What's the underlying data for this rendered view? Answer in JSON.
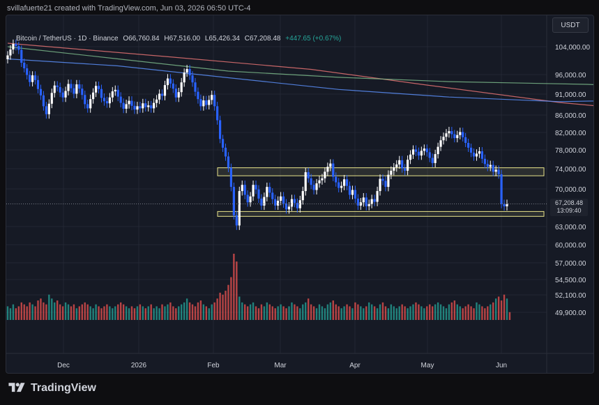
{
  "header": {
    "credit": "svillafuerte21 created with TradingView.com, Jun 03, 2026 06:50 UTC-4"
  },
  "legend": {
    "symbol": "Bitcoin / TetherUS · 1D · Binance",
    "open": "O66,760.84",
    "high": "H67,516.00",
    "low": "L65,426.34",
    "close": "C67,208.48",
    "change": "+447.65 (+0.67%)"
  },
  "currency_button": "USDT",
  "price_tag": {
    "price": "67,208.48",
    "countdown": "13:09:40"
  },
  "brand": {
    "name": "TradingView",
    "logo_icon": "tradingview-logo-icon"
  },
  "colors": {
    "up": "#ffffff",
    "down": "#2962ff",
    "vol_up": "#26a69a",
    "vol_down": "#ef5350",
    "ma_fast": "#5b8ff9",
    "ma_mid": "#7bb88a",
    "ma_slow": "#e57373",
    "zone": "#e8e38a"
  },
  "chart_data": {
    "type": "candlestick",
    "x_axis_labels": [
      "Dec",
      "2026",
      "Feb",
      "Mar",
      "Apr",
      "May",
      "Jun"
    ],
    "x_axis_months": [
      "2025-12-01",
      "2026-01-01",
      "2026-02-01",
      "2026-03-01",
      "2026-04-01",
      "2026-05-01",
      "2026-06-01"
    ],
    "y_axis_ticks": [
      104000,
      96000,
      91000,
      86000,
      82000,
      78000,
      74000,
      70000,
      63000,
      60000,
      57000,
      54500,
      52100,
      49900
    ],
    "y_axis_labels": [
      "104,000.00",
      "96,000.00",
      "91,000.00",
      "86,000.00",
      "82,000.00",
      "78,000.00",
      "74,000.00",
      "70,000.00",
      "63,000.00",
      "60,000.00",
      "57,000.00",
      "54,500.00",
      "52,100.00",
      "49,900.00"
    ],
    "x_range": [
      "2025-11-06",
      "2026-06-03"
    ],
    "ohlc_close": [
      101500,
      103200,
      104800,
      104200,
      103100,
      99400,
      97800,
      95900,
      94100,
      95800,
      94600,
      92300,
      90700,
      88100,
      86200,
      88700,
      91300,
      93200,
      92800,
      91400,
      90200,
      91800,
      93600,
      92500,
      91100,
      93500,
      92400,
      90800,
      88600,
      87600,
      89800,
      91400,
      93100,
      92300,
      90100,
      89300,
      88800,
      90200,
      91700,
      92100,
      90400,
      88900,
      87500,
      88600,
      89400,
      88200,
      87300,
      88100,
      87600,
      88800,
      87900,
      88300,
      87600,
      88900,
      89700,
      91100,
      90600,
      93300,
      95000,
      93700,
      92400,
      90200,
      91500,
      94000,
      96600,
      97600,
      95800,
      94000,
      91600,
      89800,
      88100,
      89500,
      88400,
      89600,
      90800,
      88100,
      84800,
      80500,
      78500,
      76600,
      74200,
      70400,
      65100,
      63200,
      69600,
      70800,
      68900,
      67500,
      68600,
      70800,
      69900,
      68200,
      66900,
      68500,
      70400,
      69300,
      68100,
      66900,
      67800,
      68600,
      67300,
      66200,
      66700,
      68100,
      67400,
      66400,
      67900,
      69600,
      73300,
      72100,
      70800,
      69800,
      71100,
      71700,
      72100,
      73400,
      74400,
      75100,
      72400,
      71300,
      70200,
      70600,
      71900,
      70600,
      68900,
      69800,
      68200,
      66900,
      67500,
      68400,
      66800,
      67200,
      68100,
      67600,
      69600,
      72000,
      71600,
      70400,
      72800,
      73600,
      74300,
      74900,
      75800,
      74100,
      73600,
      75900,
      77000,
      78100,
      77600,
      76800,
      77800,
      78300,
      77500,
      76300,
      75200,
      77100,
      78700,
      80200,
      81000,
      81800,
      82300,
      81600,
      80700,
      81400,
      82100,
      80900,
      79600,
      78500,
      77400,
      76600,
      77200,
      77700,
      76100,
      75000,
      74400,
      74800,
      73400,
      73800,
      72900,
      67200,
      66760,
      67208
    ],
    "ohlc_open": [
      100400,
      101500,
      103200,
      104800,
      104200,
      103100,
      99400,
      97800,
      95900,
      94100,
      95800,
      94600,
      92300,
      90700,
      88100,
      86200,
      88700,
      91300,
      93200,
      92800,
      91400,
      90200,
      91800,
      93600,
      92500,
      91100,
      93500,
      92400,
      90800,
      88600,
      87600,
      89800,
      91400,
      93100,
      92300,
      90100,
      89300,
      88800,
      90200,
      91700,
      92100,
      90400,
      88900,
      87500,
      88600,
      89400,
      88200,
      87300,
      88100,
      87600,
      88800,
      87900,
      88300,
      87600,
      88900,
      89700,
      91100,
      90600,
      93300,
      95000,
      93700,
      92400,
      90200,
      91500,
      94000,
      96600,
      97600,
      95800,
      94000,
      91600,
      89800,
      88100,
      89500,
      88400,
      89600,
      90800,
      88100,
      84800,
      80500,
      78500,
      76600,
      74200,
      70400,
      65100,
      63200,
      69600,
      70800,
      68900,
      67500,
      68600,
      70800,
      69900,
      68200,
      66900,
      68500,
      70400,
      69300,
      68100,
      66900,
      67800,
      68600,
      67300,
      66200,
      66700,
      68100,
      67400,
      66400,
      67900,
      69600,
      73300,
      72100,
      70800,
      69800,
      71100,
      71700,
      72100,
      73400,
      74400,
      75100,
      72400,
      71300,
      70200,
      70600,
      71900,
      70600,
      68900,
      69800,
      68200,
      66900,
      67500,
      68400,
      66800,
      67200,
      68100,
      67600,
      69600,
      72000,
      71600,
      70400,
      72800,
      73600,
      74300,
      74900,
      75800,
      74100,
      73600,
      75900,
      77000,
      78100,
      77600,
      76800,
      77800,
      78300,
      77500,
      76300,
      75200,
      77100,
      78700,
      80200,
      81000,
      81800,
      82300,
      81600,
      80700,
      81400,
      82100,
      80900,
      79600,
      78500,
      77400,
      76600,
      77200,
      77700,
      76100,
      75000,
      74400,
      74800,
      73400,
      73800,
      72900,
      67200,
      66760
    ],
    "ohlc_wick_pct": 0.012,
    "volume": [
      7,
      6,
      8,
      6,
      7,
      9,
      8,
      7,
      9,
      8,
      7,
      10,
      11,
      9,
      8,
      13,
      11,
      9,
      10,
      8,
      7,
      9,
      8,
      7,
      8,
      6,
      7,
      8,
      9,
      8,
      7,
      6,
      8,
      7,
      6,
      7,
      8,
      7,
      6,
      7,
      8,
      9,
      8,
      7,
      6,
      7,
      6,
      7,
      8,
      7,
      6,
      7,
      8,
      6,
      7,
      6,
      8,
      7,
      8,
      9,
      7,
      6,
      7,
      8,
      9,
      11,
      9,
      8,
      7,
      9,
      10,
      8,
      7,
      6,
      8,
      9,
      11,
      14,
      13,
      15,
      18,
      22,
      34,
      30,
      12,
      9,
      8,
      7,
      8,
      9,
      7,
      6,
      8,
      7,
      9,
      8,
      7,
      6,
      7,
      8,
      7,
      6,
      7,
      9,
      8,
      7,
      6,
      8,
      9,
      11,
      8,
      7,
      6,
      8,
      7,
      6,
      8,
      9,
      10,
      8,
      7,
      6,
      7,
      8,
      7,
      6,
      9,
      8,
      7,
      6,
      7,
      9,
      8,
      7,
      6,
      8,
      9,
      7,
      6,
      8,
      7,
      6,
      7,
      8,
      7,
      6,
      7,
      8,
      9,
      8,
      7,
      6,
      7,
      8,
      7,
      8,
      9,
      8,
      7,
      6,
      8,
      9,
      10,
      8,
      7,
      6,
      7,
      8,
      7,
      6,
      9,
      8,
      7,
      6,
      7,
      8,
      9,
      11,
      12,
      10,
      13,
      11,
      4
    ],
    "zones": [
      {
        "name": "resistance-zone",
        "low": 72600,
        "high": 74200
      },
      {
        "name": "support-zone",
        "low": 64900,
        "high": 65800
      }
    ],
    "ma_slow": [
      [
        0,
        105000
      ],
      [
        60,
        101000
      ],
      [
        110,
        97500
      ],
      [
        150,
        93500
      ],
      [
        200,
        89000
      ],
      [
        260,
        85400
      ],
      [
        300,
        83700
      ],
      [
        360,
        82800
      ],
      [
        420,
        81500
      ],
      [
        470,
        80200
      ],
      [
        540,
        77800
      ],
      [
        580,
        75300
      ],
      [
        620,
        73500
      ],
      [
        660,
        71700
      ],
      [
        700,
        70500
      ],
      [
        720,
        69600
      ]
    ],
    "ma_mid": [
      [
        0,
        104000
      ],
      [
        40,
        100500
      ],
      [
        80,
        97000
      ],
      [
        120,
        95300
      ],
      [
        160,
        94200
      ],
      [
        210,
        93500
      ],
      [
        250,
        92300
      ],
      [
        290,
        88600
      ],
      [
        340,
        84500
      ],
      [
        400,
        81100
      ],
      [
        460,
        78700
      ],
      [
        520,
        76100
      ],
      [
        560,
        74600
      ],
      [
        600,
        73100
      ],
      [
        640,
        71900
      ],
      [
        680,
        71700
      ],
      [
        720,
        72100
      ]
    ],
    "ma_fast": [
      [
        0,
        100500
      ],
      [
        40,
        98500
      ],
      [
        80,
        95200
      ],
      [
        120,
        92200
      ],
      [
        160,
        90300
      ],
      [
        200,
        89200
      ],
      [
        240,
        89700
      ],
      [
        270,
        90600
      ],
      [
        300,
        89300
      ],
      [
        340,
        86000
      ],
      [
        380,
        79900
      ],
      [
        420,
        74100
      ],
      [
        470,
        70700
      ],
      [
        510,
        69000
      ],
      [
        540,
        68400
      ],
      [
        570,
        69300
      ],
      [
        600,
        71400
      ],
      [
        640,
        73500
      ],
      [
        680,
        76000
      ],
      [
        710,
        77600
      ],
      [
        720,
        77300
      ]
    ]
  }
}
